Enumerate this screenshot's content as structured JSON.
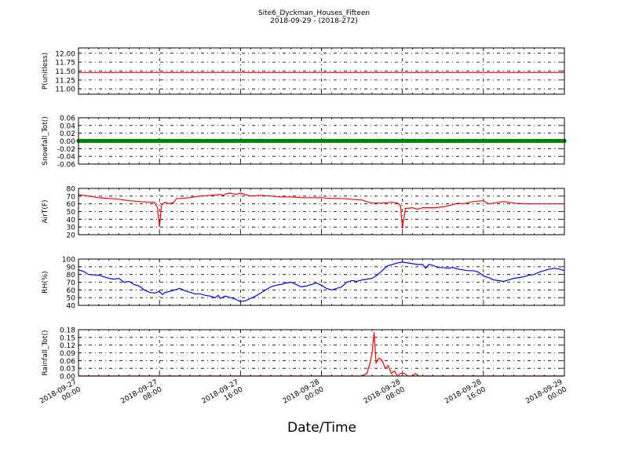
{
  "figure": {
    "title_line1": "Site6_Dyckman_Houses_Fifteen",
    "title_line2": "2018-09-29 - (2018-272)",
    "xlabel": "Date/Time",
    "x_ticks": [
      {
        "line1": "2018-09-27",
        "line2": "00:00"
      },
      {
        "line1": "2018-09-27",
        "line2": "08:00"
      },
      {
        "line1": "2018-09-27",
        "line2": "16:00"
      },
      {
        "line1": "2018-09-28",
        "line2": "00:00"
      },
      {
        "line1": "2018-09-28",
        "line2": "08:00"
      },
      {
        "line1": "2018-09-28",
        "line2": "16:00"
      },
      {
        "line1": "2018-09-29",
        "line2": "00:00"
      }
    ]
  },
  "chart_data": [
    {
      "type": "line",
      "ylabel": "P(unitless)",
      "ylim": [
        10.85,
        12.15
      ],
      "yticks": [
        "11.00",
        "11.25",
        "11.50",
        "11.75",
        "12.00"
      ],
      "ytick_values": [
        11.0,
        11.25,
        11.5,
        11.75,
        12.0
      ],
      "grid": true,
      "color": "#ff0000",
      "x_hours": [
        0,
        48
      ],
      "points": [
        [
          0,
          11.46
        ],
        [
          48,
          11.46
        ]
      ]
    },
    {
      "type": "line",
      "ylabel": "Snowfall_Tot()",
      "ylim": [
        -0.06,
        0.06
      ],
      "yticks": [
        "-0.06",
        "-0.04",
        "-0.02",
        "0.00",
        "0.02",
        "0.04",
        "0.06"
      ],
      "ytick_values": [
        -0.06,
        -0.04,
        -0.02,
        0.0,
        0.02,
        0.04,
        0.06
      ],
      "grid": true,
      "color": "#008000",
      "markers": true,
      "points": [
        [
          0,
          0
        ],
        [
          48,
          0
        ]
      ]
    },
    {
      "type": "line",
      "ylabel": "AirT(F)",
      "ylim": [
        20,
        80
      ],
      "yticks": [
        "20",
        "30",
        "40",
        "50",
        "60",
        "70",
        "80"
      ],
      "ytick_values": [
        20,
        30,
        40,
        50,
        60,
        70,
        80
      ],
      "grid": true,
      "color": "#ff0000",
      "points": [
        [
          0,
          72
        ],
        [
          0.5,
          71
        ],
        [
          1,
          70
        ],
        [
          2,
          68
        ],
        [
          3,
          67
        ],
        [
          4,
          66
        ],
        [
          5,
          64
        ],
        [
          6,
          63
        ],
        [
          7,
          62
        ],
        [
          7.5,
          62
        ],
        [
          7.8,
          55
        ],
        [
          8.0,
          30
        ],
        [
          8.2,
          58
        ],
        [
          8.5,
          62
        ],
        [
          9,
          60
        ],
        [
          9.4,
          62
        ],
        [
          9.7,
          67
        ],
        [
          10,
          67
        ],
        [
          11,
          68
        ],
        [
          12,
          70
        ],
        [
          13,
          71
        ],
        [
          14,
          72
        ],
        [
          14.3,
          71
        ],
        [
          14.6,
          73
        ],
        [
          15,
          74
        ],
        [
          15.5,
          72
        ],
        [
          16,
          74
        ],
        [
          16.5,
          72
        ],
        [
          17,
          70
        ],
        [
          18,
          71
        ],
        [
          19,
          70
        ],
        [
          20,
          69
        ],
        [
          21,
          69
        ],
        [
          22,
          68
        ],
        [
          23,
          68
        ],
        [
          24,
          68
        ],
        [
          25,
          67
        ],
        [
          26,
          67
        ],
        [
          27,
          66
        ],
        [
          28,
          65
        ],
        [
          28.7,
          62
        ],
        [
          29,
          61
        ],
        [
          30,
          61
        ],
        [
          31,
          62
        ],
        [
          31.5,
          61
        ],
        [
          31.8,
          58
        ],
        [
          32.0,
          28
        ],
        [
          32.3,
          54
        ],
        [
          33,
          55
        ],
        [
          33.5,
          53
        ],
        [
          34,
          55
        ],
        [
          35,
          55
        ],
        [
          36,
          56
        ],
        [
          37,
          59
        ],
        [
          37.5,
          61
        ],
        [
          38,
          60
        ],
        [
          39,
          63
        ],
        [
          40,
          64
        ],
        [
          40.5,
          60
        ],
        [
          41,
          61
        ],
        [
          41.5,
          62
        ],
        [
          42,
          63
        ],
        [
          43,
          61
        ],
        [
          44,
          60
        ],
        [
          45,
          60
        ],
        [
          46,
          60
        ],
        [
          47,
          60
        ],
        [
          48,
          60
        ]
      ]
    },
    {
      "type": "line",
      "ylabel": "RH(%)",
      "ylim": [
        40,
        100
      ],
      "yticks": [
        "40",
        "50",
        "60",
        "70",
        "80",
        "90",
        "100"
      ],
      "ytick_values": [
        40,
        50,
        60,
        70,
        80,
        90,
        100
      ],
      "grid": true,
      "color": "#0000ff",
      "points": [
        [
          0,
          86
        ],
        [
          0.5,
          84
        ],
        [
          1,
          80
        ],
        [
          2,
          79
        ],
        [
          2.5,
          77
        ],
        [
          3,
          75
        ],
        [
          3.5,
          74
        ],
        [
          4,
          75
        ],
        [
          4.5,
          70
        ],
        [
          5,
          71
        ],
        [
          5.5,
          67
        ],
        [
          6,
          65
        ],
        [
          6.5,
          60
        ],
        [
          7,
          57
        ],
        [
          7.5,
          56
        ],
        [
          8,
          58
        ],
        [
          8.3,
          54
        ],
        [
          8.6,
          57
        ],
        [
          9,
          58
        ],
        [
          9.5,
          60
        ],
        [
          10,
          62
        ],
        [
          10.5,
          59
        ],
        [
          11,
          57
        ],
        [
          11.5,
          55
        ],
        [
          12,
          55
        ],
        [
          12.5,
          53
        ],
        [
          13,
          52
        ],
        [
          13.5,
          50
        ],
        [
          13.8,
          53
        ],
        [
          14,
          49
        ],
        [
          14.5,
          52
        ],
        [
          15,
          50
        ],
        [
          15.5,
          48
        ],
        [
          15.8,
          46
        ],
        [
          16,
          45
        ],
        [
          16.5,
          46
        ],
        [
          17,
          49
        ],
        [
          17.5,
          52
        ],
        [
          18,
          56
        ],
        [
          18.5,
          60
        ],
        [
          19,
          64
        ],
        [
          19.5,
          66
        ],
        [
          20,
          67
        ],
        [
          20.5,
          69
        ],
        [
          21,
          70
        ],
        [
          21.5,
          67
        ],
        [
          22,
          64
        ],
        [
          22.5,
          65
        ],
        [
          23,
          67
        ],
        [
          23.5,
          69
        ],
        [
          24,
          66
        ],
        [
          24.5,
          62
        ],
        [
          25,
          60
        ],
        [
          25.5,
          62
        ],
        [
          26,
          64
        ],
        [
          26.5,
          70
        ],
        [
          27,
          72
        ],
        [
          27.5,
          71
        ],
        [
          28,
          73
        ],
        [
          28.5,
          74
        ],
        [
          29,
          75
        ],
        [
          29.5,
          79
        ],
        [
          30,
          85
        ],
        [
          30.5,
          91
        ],
        [
          31,
          93
        ],
        [
          31.5,
          95
        ],
        [
          32,
          96
        ],
        [
          32.5,
          95
        ],
        [
          33,
          94
        ],
        [
          33.5,
          93
        ],
        [
          34,
          93
        ],
        [
          34.3,
          88
        ],
        [
          34.6,
          93
        ],
        [
          35,
          92
        ],
        [
          35.5,
          89
        ],
        [
          36,
          89
        ],
        [
          36.5,
          88
        ],
        [
          37,
          89
        ],
        [
          37.5,
          87
        ],
        [
          38,
          86
        ],
        [
          38.5,
          85
        ],
        [
          39,
          85
        ],
        [
          39.5,
          83
        ],
        [
          40,
          78
        ],
        [
          40.5,
          76
        ],
        [
          41,
          73
        ],
        [
          41.5,
          72
        ],
        [
          42,
          71
        ],
        [
          42.5,
          73
        ],
        [
          43,
          75
        ],
        [
          43.5,
          76
        ],
        [
          44,
          77
        ],
        [
          44.5,
          79
        ],
        [
          45,
          80
        ],
        [
          45.5,
          83
        ],
        [
          46,
          85
        ],
        [
          46.5,
          87
        ],
        [
          47,
          88
        ],
        [
          47.5,
          87
        ],
        [
          48,
          85
        ]
      ]
    },
    {
      "type": "line",
      "ylabel": "Rainfall_Tot()",
      "ylim": [
        0,
        0.18
      ],
      "yticks": [
        "0.00",
        "0.03",
        "0.06",
        "0.09",
        "0.12",
        "0.15",
        "0.18"
      ],
      "ytick_values": [
        0,
        0.03,
        0.06,
        0.09,
        0.12,
        0.15,
        0.18
      ],
      "grid": true,
      "color": "#ff0000",
      "points": [
        [
          0,
          0
        ],
        [
          28,
          0
        ],
        [
          28.5,
          0.01
        ],
        [
          28.8,
          0.05
        ],
        [
          29,
          0.09
        ],
        [
          29.2,
          0.17
        ],
        [
          29.4,
          0.05
        ],
        [
          29.7,
          0.07
        ],
        [
          30,
          0.06
        ],
        [
          30.3,
          0.03
        ],
        [
          30.6,
          0.04
        ],
        [
          30.9,
          0.01
        ],
        [
          31.2,
          0.02
        ],
        [
          31.5,
          0
        ],
        [
          31.8,
          0.01
        ],
        [
          32.2,
          0.01
        ],
        [
          32.5,
          0
        ],
        [
          33,
          0
        ],
        [
          33.3,
          0.01
        ],
        [
          33.6,
          0
        ],
        [
          48,
          0
        ]
      ]
    }
  ]
}
